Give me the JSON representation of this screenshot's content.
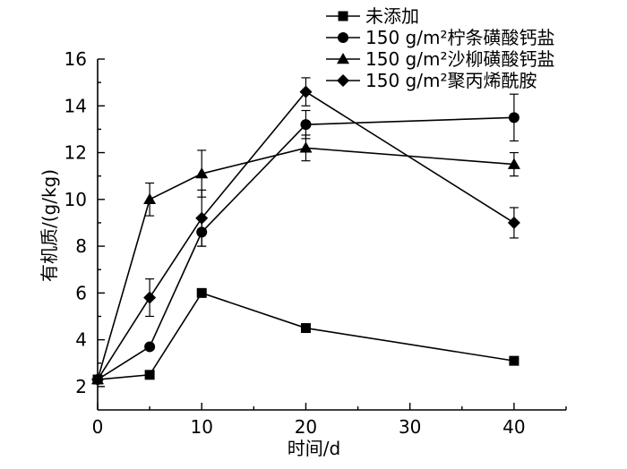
{
  "chart_data": {
    "type": "line",
    "xlabel": "时间/d",
    "ylabel": "有机质/(g/kg)",
    "xlim": [
      0,
      45
    ],
    "ylim": [
      1,
      16
    ],
    "xticks": [
      0,
      10,
      20,
      30,
      40
    ],
    "yticks": [
      2,
      4,
      6,
      8,
      10,
      12,
      14,
      16
    ],
    "grid": false,
    "legend_position": "top-right",
    "x": [
      0,
      5,
      10,
      20,
      40
    ],
    "series": [
      {
        "name": "未添加",
        "marker": "square",
        "values": [
          2.3,
          2.5,
          6.0,
          4.5,
          3.1
        ],
        "errors": [
          0,
          0,
          0.15,
          0,
          0
        ]
      },
      {
        "name": "150 g/m²柠条磺酸钙盐",
        "marker": "circle",
        "values": [
          2.3,
          3.7,
          8.6,
          13.2,
          13.5
        ],
        "errors": [
          0,
          0,
          0.6,
          0.6,
          1.0
        ]
      },
      {
        "name": "150 g/m²沙柳磺酸钙盐",
        "marker": "triangle",
        "values": [
          2.3,
          10.0,
          11.1,
          12.2,
          11.5
        ],
        "errors": [
          0,
          0.7,
          1.0,
          0.55,
          0.5
        ]
      },
      {
        "name": "150 g/m²聚丙烯酰胺",
        "marker": "diamond",
        "values": [
          2.3,
          5.8,
          9.2,
          14.6,
          9.0
        ],
        "errors": [
          0,
          0.8,
          1.2,
          0.6,
          0.65
        ]
      }
    ]
  }
}
